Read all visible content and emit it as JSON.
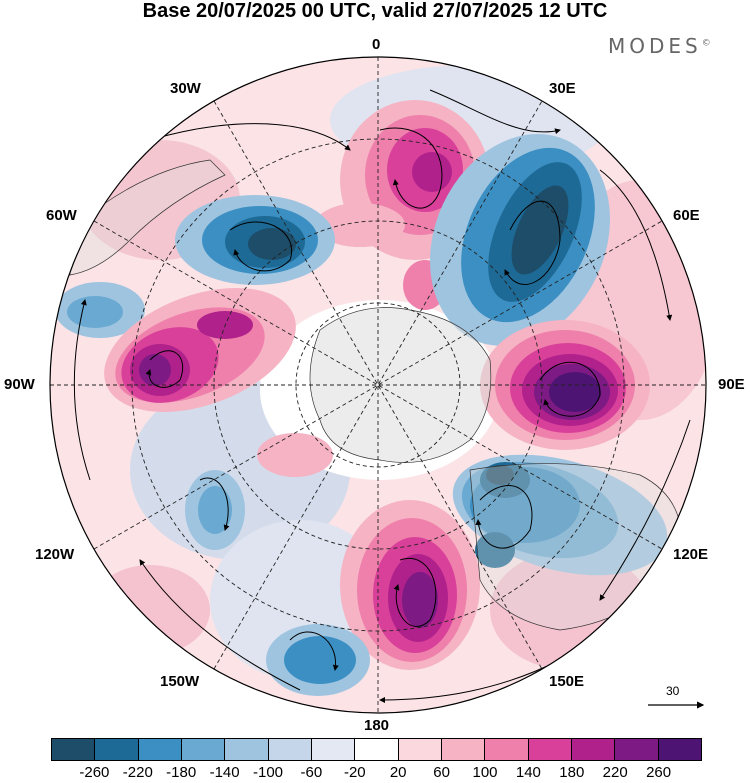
{
  "title": "Base 20/07/2025 00 UTC, valid 27/07/2025 12 UTC",
  "brand": "MODES",
  "brand_mark": "©",
  "longitude_labels": {
    "n0": "0",
    "e30": "30E",
    "e60": "60E",
    "e90": "90E",
    "e120": "120E",
    "e150": "150E",
    "s180": "180",
    "w150": "150W",
    "w120": "120W",
    "w90": "90W",
    "w60": "60W",
    "w30": "30W"
  },
  "reference_vector": {
    "label": "30"
  },
  "colorbar": {
    "colors": [
      "#1d4d68",
      "#1e6a96",
      "#3b8fc2",
      "#6aa9d1",
      "#9fc4e0",
      "#c6d6ea",
      "#e4e8f3",
      "#ffffff",
      "#fbd8dd",
      "#f5b3c4",
      "#ee80ab",
      "#d9409a",
      "#b0218b",
      "#7d1a84",
      "#4e1473"
    ],
    "ticks": [
      "-260",
      "-220",
      "-180",
      "-140",
      "-100",
      "-60",
      "-20",
      "20",
      "60",
      "100",
      "140",
      "180",
      "220",
      "260"
    ]
  },
  "colors": {
    "land_gray": "#dcdcdc",
    "coast": "#222222"
  }
}
